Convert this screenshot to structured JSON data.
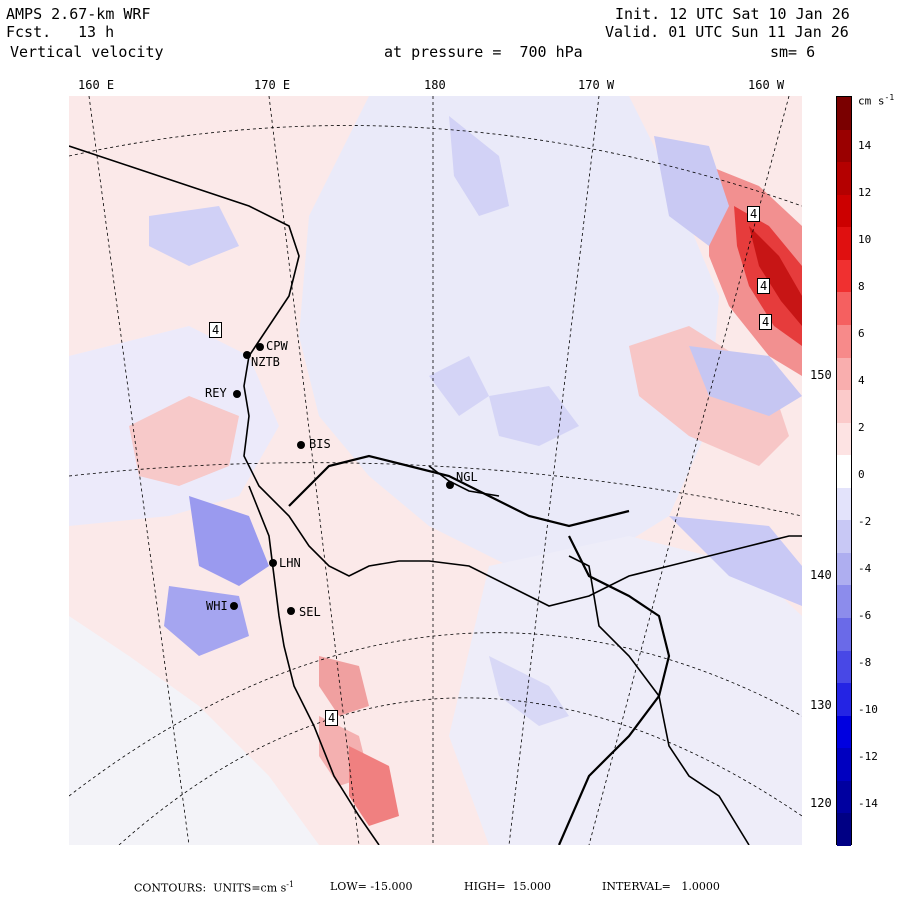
{
  "header": {
    "model": "AMPS 2.67-km WRF",
    "fcst_label": "Fcst.",
    "fcst_value": "13 h",
    "field": "Vertical velocity",
    "init": "Init. 12 UTC Sat 10 Jan 26",
    "valid": "Valid. 01 UTC Sun 11 Jan 26",
    "level": "at pressure =  700 hPa",
    "smooth": "sm= 6"
  },
  "lon_labels": [
    "160 E",
    "170 E",
    "180",
    "170 W",
    "160 W"
  ],
  "lat_labels": [
    "150 W",
    "140 W",
    "130 W",
    "120 W"
  ],
  "stations": [
    "CPW",
    "NZTB",
    "REY",
    "BIS",
    "NGL",
    "LHN",
    "WHI",
    "SEL"
  ],
  "contour_box_label": "4",
  "colorbar": {
    "units": "cm s",
    "units_exp": "-1",
    "ticks": [
      "14",
      "12",
      "10",
      "8",
      "6",
      "4",
      "2",
      "0",
      "-2",
      "-4",
      "-6",
      "-8",
      "-10",
      "-12",
      "-14"
    ],
    "colors": [
      "#7a0000",
      "#9a0000",
      "#b40000",
      "#cc0000",
      "#e01010",
      "#f03030",
      "#f56060",
      "#f78a8a",
      "#f9aeae",
      "#fbcaca",
      "#fde3e3",
      "#ffffff",
      "#e3e3fb",
      "#c8c8f5",
      "#aeaef0",
      "#8c8cec",
      "#6a6ae8",
      "#4848e6",
      "#2424e4",
      "#0000e0",
      "#0000c0",
      "#0000a0",
      "#000084"
    ]
  },
  "footer": {
    "contours": "CONTOURS:  UNITS=cm s",
    "exp": "-1",
    "low": "LOW= -15.000",
    "high": "HIGH=  15.000",
    "interval": "INTERVAL=   1.0000"
  }
}
